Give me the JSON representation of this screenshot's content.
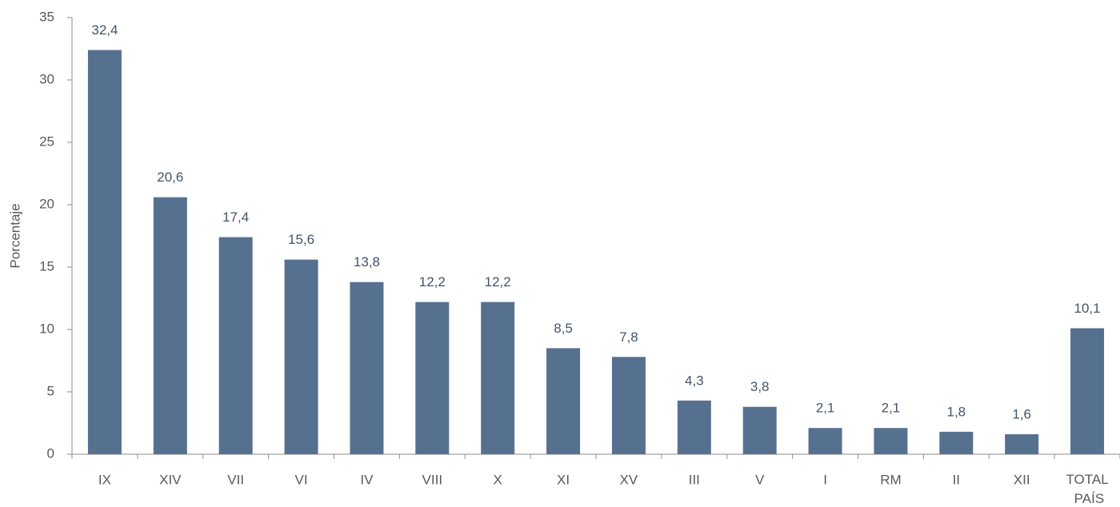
{
  "chart_data": {
    "type": "bar",
    "y_label": "Porcentaje",
    "categories": [
      "IX",
      "XIV",
      "VII",
      "VI",
      "IV",
      "VIII",
      "X",
      "XI",
      "XV",
      "III",
      "V",
      "I",
      "RM",
      "II",
      "XII",
      "TOTAL PAÍS"
    ],
    "values": [
      32.4,
      20.6,
      17.4,
      15.6,
      13.8,
      12.2,
      12.2,
      8.5,
      7.8,
      4.3,
      3.8,
      2.1,
      2.1,
      1.8,
      1.6,
      10.1
    ],
    "value_labels": [
      "32,4",
      "20,6",
      "17,4",
      "15,6",
      "13,8",
      "12,2",
      "12,2",
      "8,5",
      "7,8",
      "4,3",
      "3,8",
      "2,1",
      "2,1",
      "1,8",
      "1,6",
      "10,1"
    ],
    "color": "#56708f",
    "ylim": [
      0,
      35
    ],
    "yticks": [
      0,
      5,
      10,
      15,
      20,
      25,
      30,
      35
    ],
    "grid": false
  }
}
